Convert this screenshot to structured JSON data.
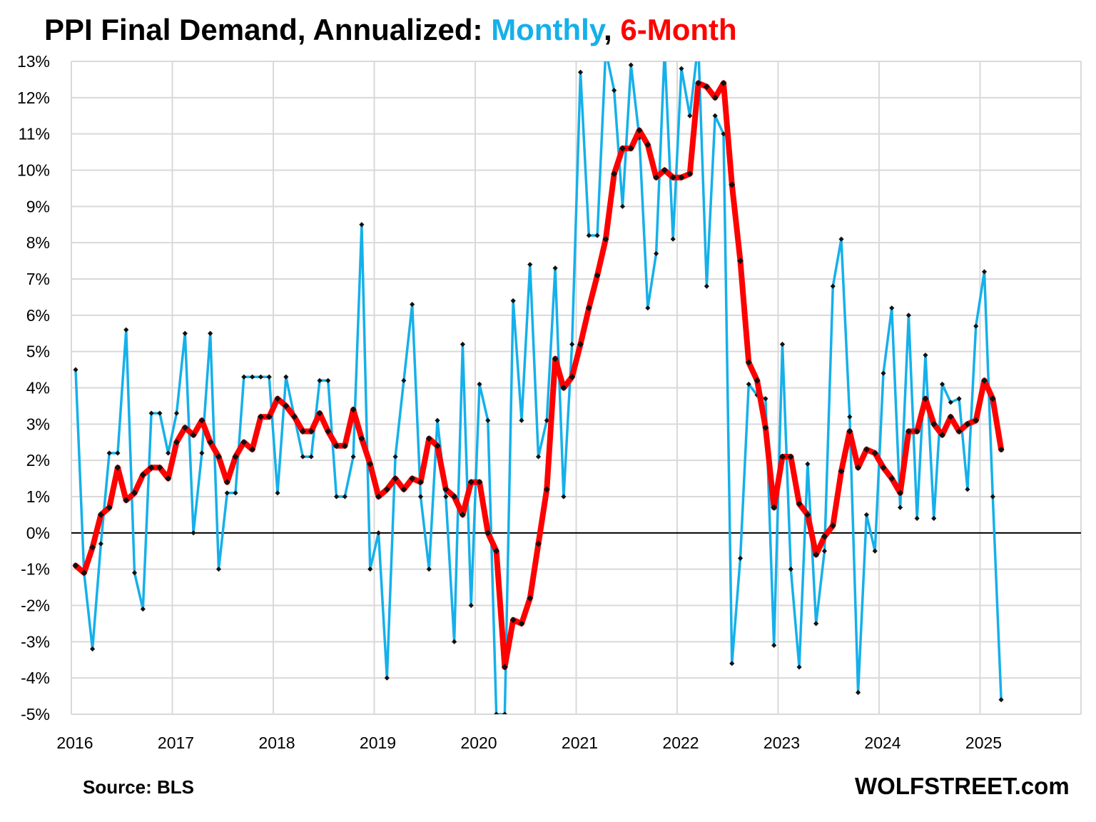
{
  "chart_data": {
    "type": "line",
    "title": {
      "main": "PPI Final Demand,  Annualized: ",
      "series1_label": "Monthly",
      "separator": ", ",
      "series2_label": "6-Month"
    },
    "source": "Source: BLS",
    "brand": "WOLFSTREET.com",
    "start": {
      "year": 2016,
      "month": 1
    },
    "ylim": [
      -5,
      13
    ],
    "yticks": [
      -5,
      -4,
      -3,
      -2,
      -1,
      0,
      1,
      2,
      3,
      4,
      5,
      6,
      7,
      8,
      9,
      10,
      11,
      12,
      13
    ],
    "ytick_labels": [
      "-5%",
      "-4%",
      "-3%",
      "-2%",
      "-1%",
      "0%",
      "1%",
      "2%",
      "3%",
      "4%",
      "5%",
      "6%",
      "7%",
      "8%",
      "9%",
      "10%",
      "11%",
      "12%",
      "13%"
    ],
    "xtick_labels": [
      "2016",
      "2017",
      "2018",
      "2019",
      "2020",
      "2021",
      "2022",
      "2023",
      "2024",
      "2025"
    ],
    "colors": {
      "monthly": "#15B0EA",
      "six_month": "#FF0000",
      "markers": "#111111",
      "grid": "#D9D9D9",
      "zero_line": "#000000"
    },
    "series": [
      {
        "name": "Monthly",
        "values": [
          4.5,
          -1.1,
          -3.2,
          -0.3,
          2.2,
          2.2,
          5.6,
          -1.1,
          -2.1,
          3.3,
          3.3,
          2.2,
          3.3,
          5.5,
          0.0,
          2.2,
          5.5,
          -1.0,
          1.1,
          1.1,
          4.3,
          4.3,
          4.3,
          4.3,
          1.1,
          4.3,
          3.2,
          2.1,
          2.1,
          4.2,
          4.2,
          1.0,
          1.0,
          2.1,
          8.5,
          -1.0,
          0.0,
          -4.0,
          2.1,
          4.2,
          6.3,
          1.0,
          -1.0,
          3.1,
          1.0,
          -3.0,
          5.2,
          -2.0,
          4.1,
          3.1,
          -5.0,
          -5.0,
          6.4,
          3.1,
          7.4,
          2.1,
          3.1,
          7.3,
          1.0,
          5.2,
          12.7,
          8.2,
          8.2,
          13.3,
          12.2,
          9.0,
          12.9,
          10.9,
          6.2,
          7.7,
          13.3,
          8.1,
          12.8,
          11.5,
          13.5,
          6.8,
          11.5,
          11.0,
          -3.6,
          -0.7,
          4.1,
          3.8,
          3.7,
          -3.1,
          5.2,
          -1.0,
          -3.7,
          1.9,
          -2.5,
          -0.5,
          6.8,
          8.1,
          3.2,
          -4.4,
          0.5,
          -0.5,
          4.4,
          6.2,
          0.7,
          6.0,
          0.4,
          4.9,
          0.4,
          4.1,
          3.6,
          3.7,
          1.2,
          5.7,
          7.2,
          1.0,
          -4.6
        ]
      },
      {
        "name": "6-Month",
        "values": [
          -0.9,
          -1.1,
          -0.4,
          0.5,
          0.7,
          1.8,
          0.9,
          1.1,
          1.6,
          1.8,
          1.8,
          1.5,
          2.5,
          2.9,
          2.7,
          3.1,
          2.5,
          2.1,
          1.4,
          2.1,
          2.5,
          2.3,
          3.2,
          3.2,
          3.7,
          3.5,
          3.2,
          2.8,
          2.8,
          3.3,
          2.8,
          2.4,
          2.4,
          3.4,
          2.6,
          1.9,
          1.0,
          1.2,
          1.5,
          1.2,
          1.5,
          1.4,
          2.6,
          2.4,
          1.2,
          1.0,
          0.5,
          1.4,
          1.4,
          0.0,
          -0.5,
          -3.7,
          -2.4,
          -2.5,
          -1.8,
          -0.3,
          1.2,
          4.8,
          4.0,
          4.3,
          5.2,
          6.2,
          7.1,
          8.1,
          9.9,
          10.6,
          10.6,
          11.1,
          10.7,
          9.8,
          10.0,
          9.8,
          9.8,
          9.9,
          12.4,
          12.3,
          12.0,
          12.4,
          9.6,
          7.5,
          4.7,
          4.2,
          2.9,
          0.7,
          2.1,
          2.1,
          0.8,
          0.5,
          -0.6,
          -0.1,
          0.2,
          1.7,
          2.8,
          1.8,
          2.3,
          2.2,
          1.8,
          1.5,
          1.1,
          2.8,
          2.8,
          3.7,
          3.0,
          2.7,
          3.2,
          2.8,
          3.0,
          3.1,
          4.2,
          3.7,
          2.3
        ]
      }
    ]
  }
}
